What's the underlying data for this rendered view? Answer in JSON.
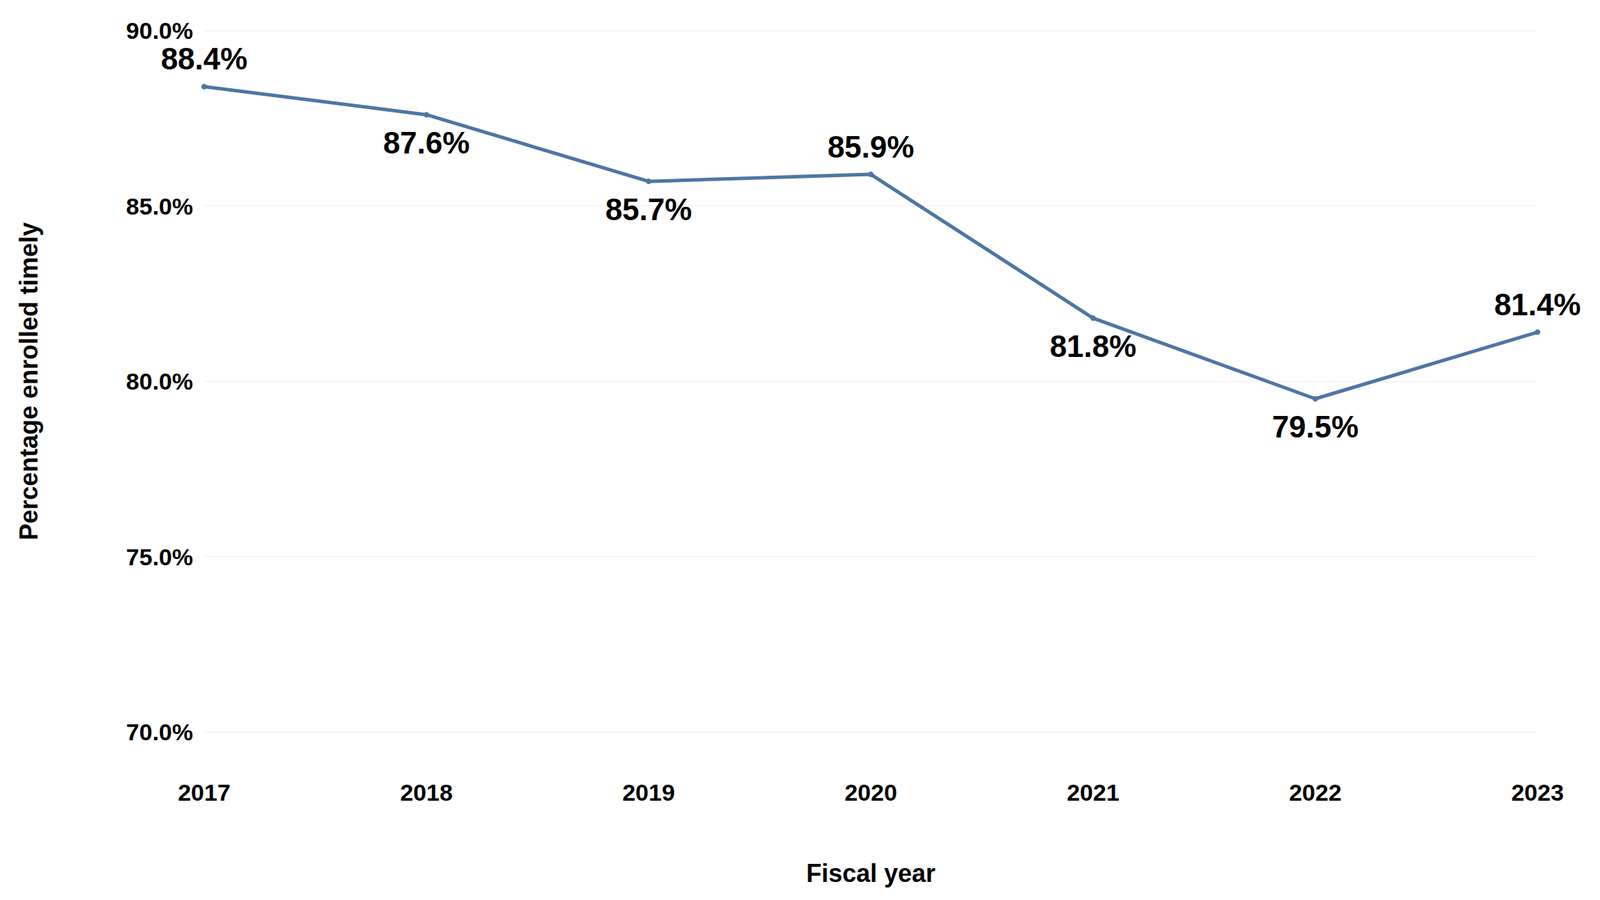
{
  "chart_data": {
    "type": "line",
    "x_label": "Fiscal year",
    "y_label": "Percentage enrolled timely",
    "categories": [
      "2017",
      "2018",
      "2019",
      "2020",
      "2021",
      "2022",
      "2023"
    ],
    "values": [
      88.4,
      87.6,
      85.7,
      85.9,
      81.8,
      79.5,
      81.4
    ],
    "value_labels": [
      "88.4%",
      "87.6%",
      "85.7%",
      "85.9%",
      "81.8%",
      "79.5%",
      "81.4%"
    ],
    "color": "#4e76a3",
    "marker": "circle",
    "data_labels": true,
    "ylim": [
      70,
      90
    ],
    "yticks": [
      {
        "value": 70,
        "label": "70.0%"
      },
      {
        "value": 75,
        "label": "75.0%"
      },
      {
        "value": 80,
        "label": "80.0%"
      },
      {
        "value": 85,
        "label": "85.0%"
      },
      {
        "value": 90,
        "label": "90.0%"
      }
    ],
    "grid": true
  }
}
